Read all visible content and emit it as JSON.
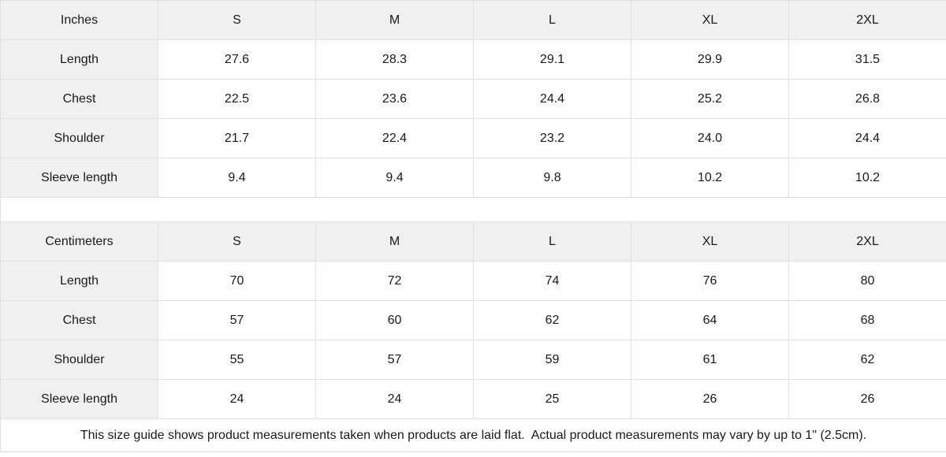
{
  "tables": [
    {
      "unit_label": "Inches",
      "sizes": [
        "S",
        "M",
        "L",
        "XL",
        "2XL"
      ],
      "rows": [
        {
          "label": "Length",
          "values": [
            "27.6",
            "28.3",
            "29.1",
            "29.9",
            "31.5"
          ]
        },
        {
          "label": "Chest",
          "values": [
            "22.5",
            "23.6",
            "24.4",
            "25.2",
            "26.8"
          ]
        },
        {
          "label": "Shoulder",
          "values": [
            "21.7",
            "22.4",
            "23.2",
            "24.0",
            "24.4"
          ]
        },
        {
          "label": "Sleeve length",
          "values": [
            "9.4",
            "9.4",
            "9.8",
            "10.2",
            "10.2"
          ]
        }
      ]
    },
    {
      "unit_label": "Centimeters",
      "sizes": [
        "S",
        "M",
        "L",
        "XL",
        "2XL"
      ],
      "rows": [
        {
          "label": "Length",
          "values": [
            "70",
            "72",
            "74",
            "76",
            "80"
          ]
        },
        {
          "label": "Chest",
          "values": [
            "57",
            "60",
            "62",
            "64",
            "68"
          ]
        },
        {
          "label": "Shoulder",
          "values": [
            "55",
            "57",
            "59",
            "61",
            "62"
          ]
        },
        {
          "label": "Sleeve length",
          "values": [
            "24",
            "24",
            "25",
            "26",
            "26"
          ]
        }
      ]
    }
  ],
  "footer": {
    "note": "This size guide shows product measurements taken when products are laid flat.  Actual product measurements may vary by up to 1\" (2.5cm)."
  },
  "colors": {
    "header_bg": "#f0f0f0",
    "cell_bg": "#ffffff",
    "border": "#e0e0e0",
    "text": "#1a1a1a"
  }
}
